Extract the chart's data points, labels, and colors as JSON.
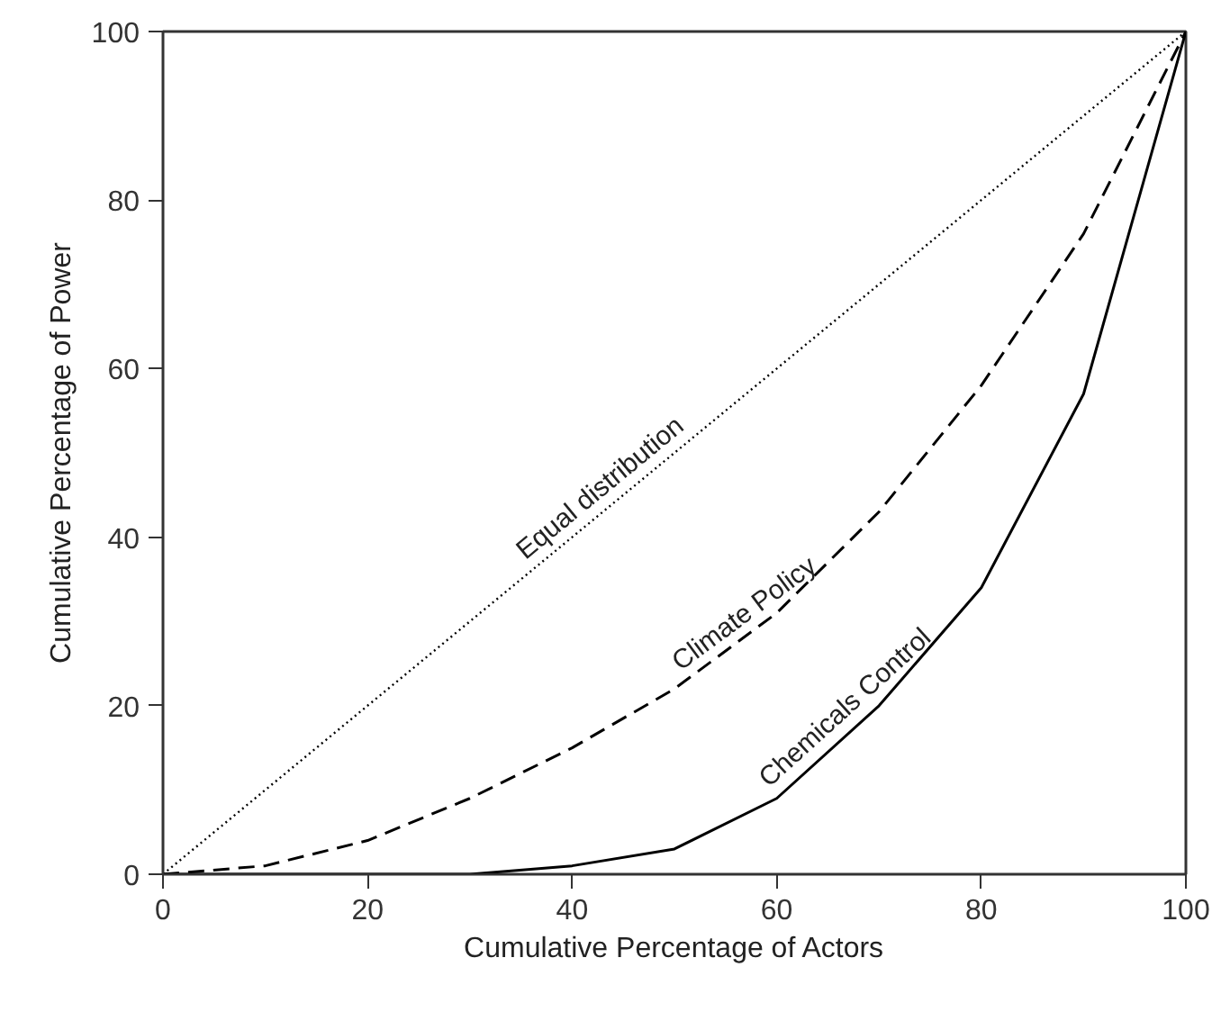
{
  "chart_data": {
    "type": "line",
    "xlabel": "Cumulative Percentage of Actors",
    "ylabel": "Cumulative Percentage of Power",
    "xlim": [
      0,
      100
    ],
    "ylim": [
      0,
      100
    ],
    "xticks": [
      0,
      20,
      40,
      60,
      80,
      100
    ],
    "yticks": [
      0,
      20,
      40,
      60,
      80,
      100
    ],
    "grid": false,
    "marker": "none",
    "series": [
      {
        "color": "#000000",
        "line_style": "dotted",
        "x": [
          0,
          100
        ],
        "values": [
          0,
          100
        ]
      },
      {
        "color": "#000000",
        "line_style": "dashed",
        "x": [
          0,
          10,
          20,
          30,
          40,
          50,
          60,
          70,
          80,
          90,
          100
        ],
        "values": [
          0,
          1,
          4,
          9,
          15,
          22,
          31,
          43,
          58,
          76,
          100
        ]
      },
      {
        "color": "#000000",
        "line_style": "solid",
        "x": [
          0,
          10,
          20,
          30,
          40,
          50,
          60,
          70,
          80,
          90,
          100
        ],
        "values": [
          0,
          0,
          0,
          0,
          1,
          3,
          9,
          20,
          34,
          57,
          100
        ]
      }
    ],
    "annotations": [
      {
        "text": "Equal distribution",
        "x": 44,
        "y": 44
      },
      {
        "text": "Climate Policy",
        "x": 58,
        "y": 29
      },
      {
        "text": "Chemicals Control",
        "x": 68,
        "y": 18
      }
    ]
  }
}
